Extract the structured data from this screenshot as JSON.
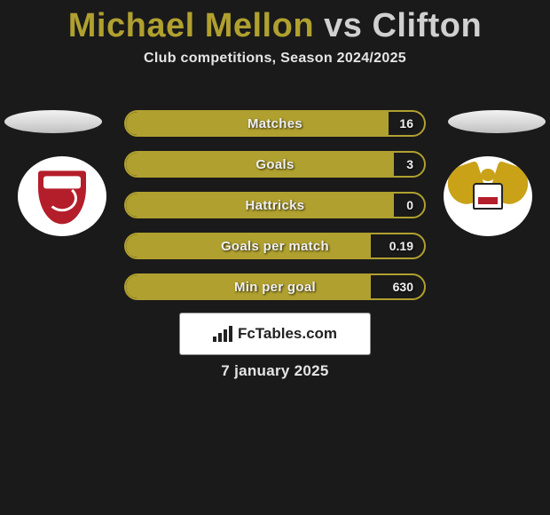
{
  "header": {
    "player1": "Michael Mellon",
    "vs": " vs ",
    "player2": "Clifton",
    "subtitle": "Club competitions, Season 2024/2025"
  },
  "stats": {
    "rows": [
      {
        "label": "Matches",
        "left": "",
        "right": "16",
        "fill_pct": 88
      },
      {
        "label": "Goals",
        "left": "",
        "right": "3",
        "fill_pct": 90
      },
      {
        "label": "Hattricks",
        "left": "",
        "right": "0",
        "fill_pct": 90
      },
      {
        "label": "Goals per match",
        "left": "",
        "right": "0.19",
        "fill_pct": 82
      },
      {
        "label": "Min per goal",
        "left": "",
        "right": "630",
        "fill_pct": 82
      }
    ],
    "bar_color": "#b0a02f",
    "border_color": "#b0a02f",
    "text_color": "#f0f0f0"
  },
  "branding": {
    "site_name": "FcTables.com"
  },
  "footer": {
    "date": "7 january 2025"
  },
  "colors": {
    "background": "#1a1a1a",
    "accent": "#b0a02f",
    "text_light": "#e5e5e5"
  }
}
